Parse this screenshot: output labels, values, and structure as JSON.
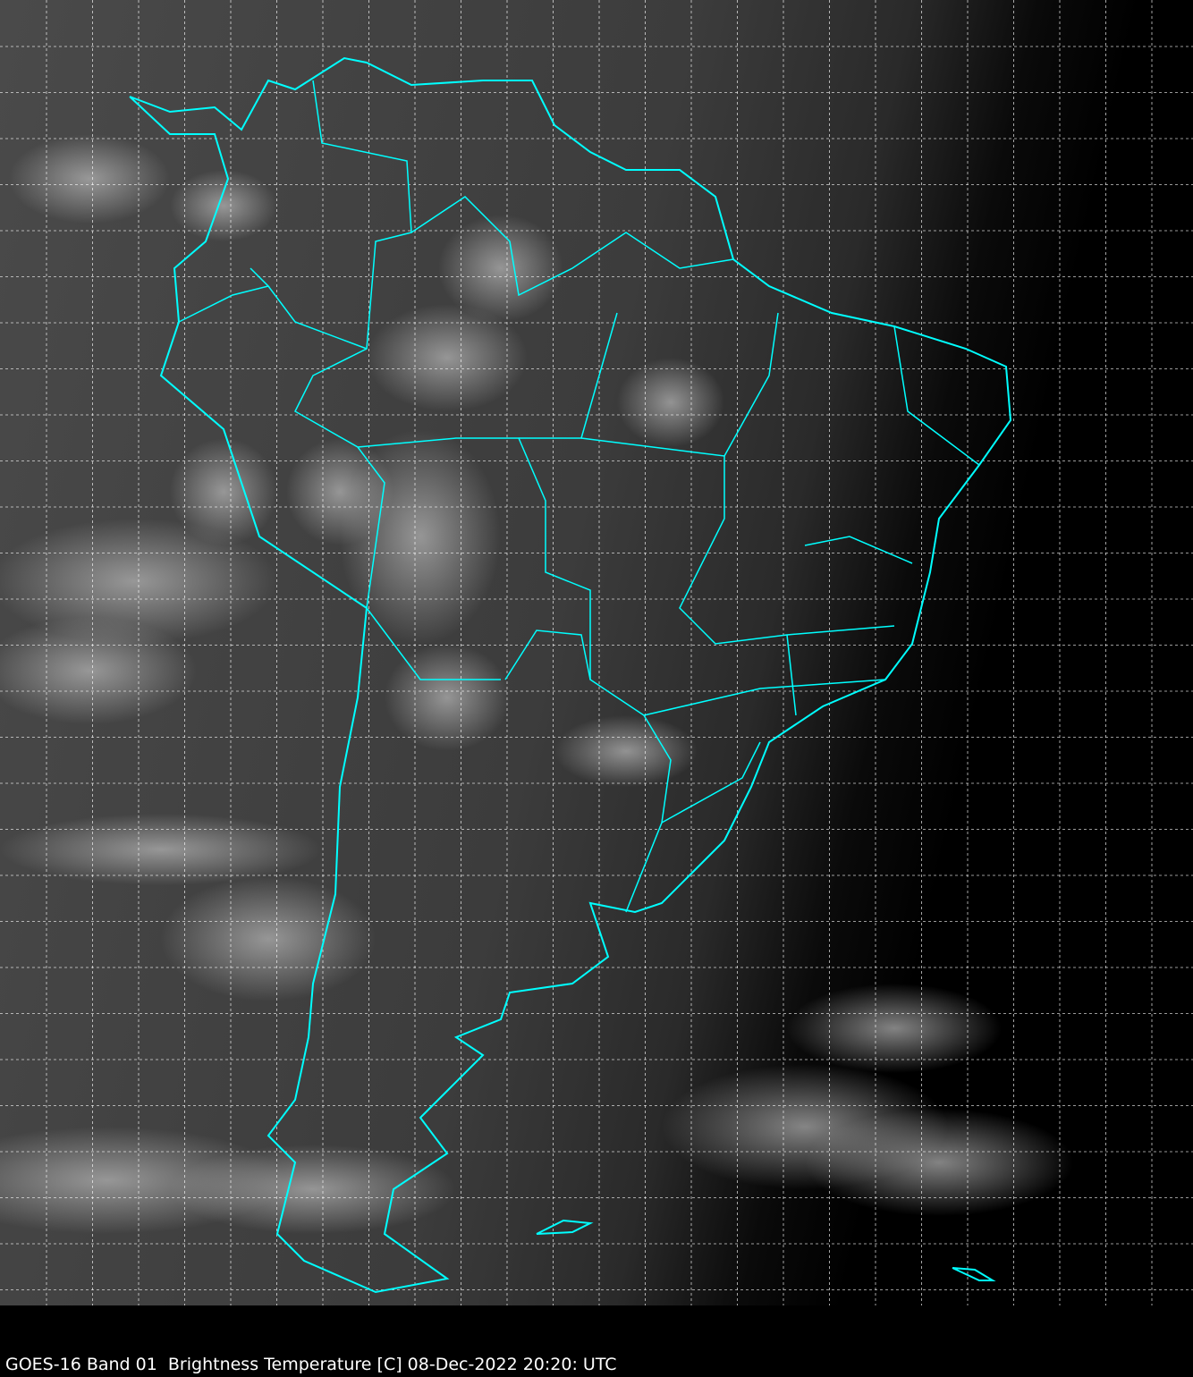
{
  "caption": "GOES-16 Band 01  Brightness Temperature [C] 08-Dec-2022 20:20: UTC",
  "map": {
    "imagery": "satellite-visible-grayscale",
    "region": "South America",
    "coastline_color": "#00ffff",
    "grid_color": "#ffffff",
    "grid_style": "dashed",
    "background_color": "#000000"
  }
}
